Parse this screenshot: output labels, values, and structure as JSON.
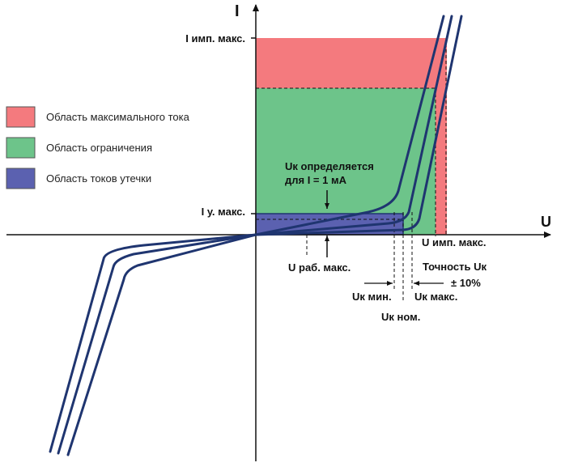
{
  "axes": {
    "y_label": "I",
    "x_label": "U"
  },
  "labels": {
    "i_imp_max": "I имп. макс.",
    "i_leak_max": "I у. макс.",
    "uk_defined_line1": "Uк определяется",
    "uk_defined_line2": "для I = 1 мА",
    "u_imp_max": "U имп. макс.",
    "u_work_max": "U раб. макс.",
    "accuracy_line1": "Точность Uк",
    "accuracy_line2": "± 10%",
    "uk_min": "Uк мин.",
    "uk_max": "Uк макс.",
    "uk_nom": "Uк ном."
  },
  "legend": [
    {
      "label": "Область максимального тока",
      "color": "#f47a7e"
    },
    {
      "label": "Область ограничения",
      "color": "#6dc48a"
    },
    {
      "label": "Область токов утечки",
      "color": "#5b61b0"
    }
  ],
  "colors": {
    "max_current": "#f47a7e",
    "clamping": "#6dc48a",
    "leakage": "#5b61b0",
    "curve": "#1f3570",
    "axis": "#111111"
  }
}
